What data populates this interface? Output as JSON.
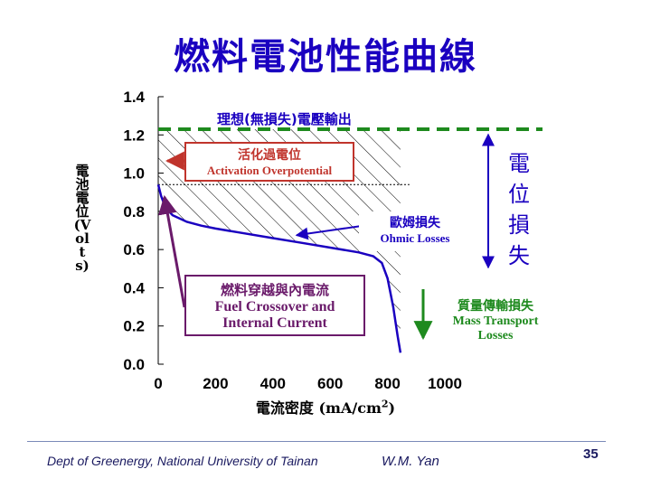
{
  "slide": {
    "title": "燃料電池性能曲線"
  },
  "chart_data": {
    "type": "line",
    "xlabel": "電流密度 (mA/cm",
    "xlabel_sup": "2",
    "xlabel_end": ")",
    "ylabel": "電池電位(Volts)",
    "xlim": [
      0,
      1000
    ],
    "ylim": [
      0,
      1.4
    ],
    "x_ticks": [
      "0",
      "200",
      "400",
      "600",
      "800",
      "1000"
    ],
    "y_ticks": [
      "0.0",
      "0.2",
      "0.4",
      "0.6",
      "0.8",
      "1.0",
      "1.2",
      "1.4"
    ],
    "ideal_voltage": 1.23,
    "series": [
      {
        "x": [
          0,
          10,
          25,
          50,
          100,
          150,
          200,
          300,
          400,
          500,
          600,
          700,
          750,
          780,
          800,
          820,
          835,
          845
        ],
        "y": [
          0.94,
          0.88,
          0.82,
          0.78,
          0.745,
          0.725,
          0.71,
          0.685,
          0.66,
          0.635,
          0.61,
          0.585,
          0.565,
          0.53,
          0.45,
          0.3,
          0.15,
          0.06
        ],
        "color": "#1a00c0"
      }
    ],
    "annotations": {
      "ideal": "理想(無損失)電壓輸出",
      "activation_zh": "活化過電位",
      "activation_en": "Activation Overpotential",
      "ohmic_zh": "歐姆損失",
      "ohmic_en": "Ohmic Losses",
      "crossover_zh": "燃料穿越與內電流",
      "crossover_en_1": "Fuel Crossover and",
      "crossover_en_2": "Internal Current",
      "mass_zh": "質量傳輸損失",
      "mass_en_1": "Mass Transport",
      "mass_en_2": "Losses",
      "voltage_loss": "電位損失"
    },
    "colors": {
      "ideal_line": "#1e8a1e",
      "curve": "#1a00c0",
      "activation": "#c0342c",
      "crossover": "#6a1a6a",
      "mass": "#1e8a1e",
      "loss_arrow": "#1a00c0"
    }
  },
  "footer": {
    "left": "Dept  of Greenergy, National University of Tainan",
    "center": "W.M. Yan",
    "page": "35"
  }
}
